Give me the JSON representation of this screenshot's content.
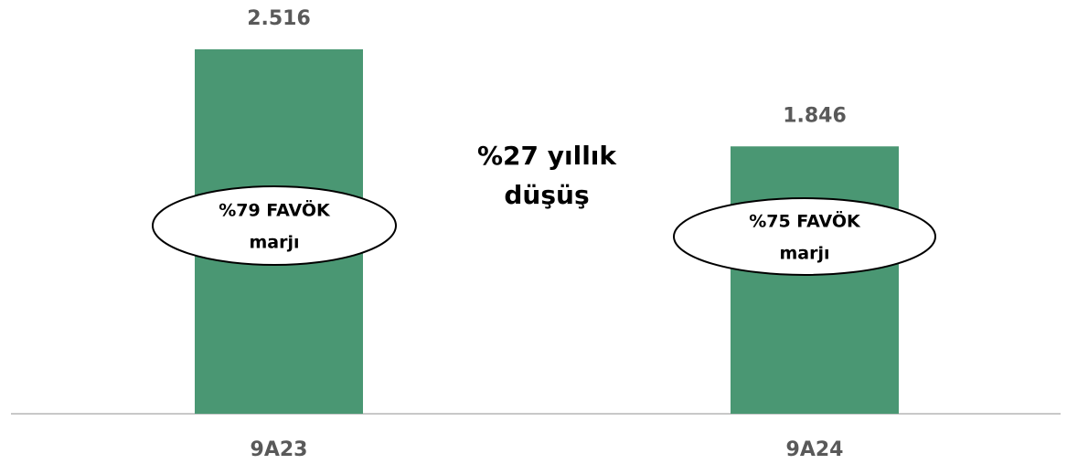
{
  "chart_data": {
    "type": "bar",
    "categories": [
      "9A23",
      "9A24"
    ],
    "values": [
      2516,
      1846
    ],
    "value_labels": [
      "2.516",
      "1.846"
    ],
    "color": "#4a9773",
    "annotation": [
      "%27 yıllık",
      "düşüş"
    ],
    "bar_notes": [
      [
        "%79 FAVÖK",
        "marjı"
      ],
      [
        "%75 FAVÖK",
        "marjı"
      ]
    ]
  }
}
